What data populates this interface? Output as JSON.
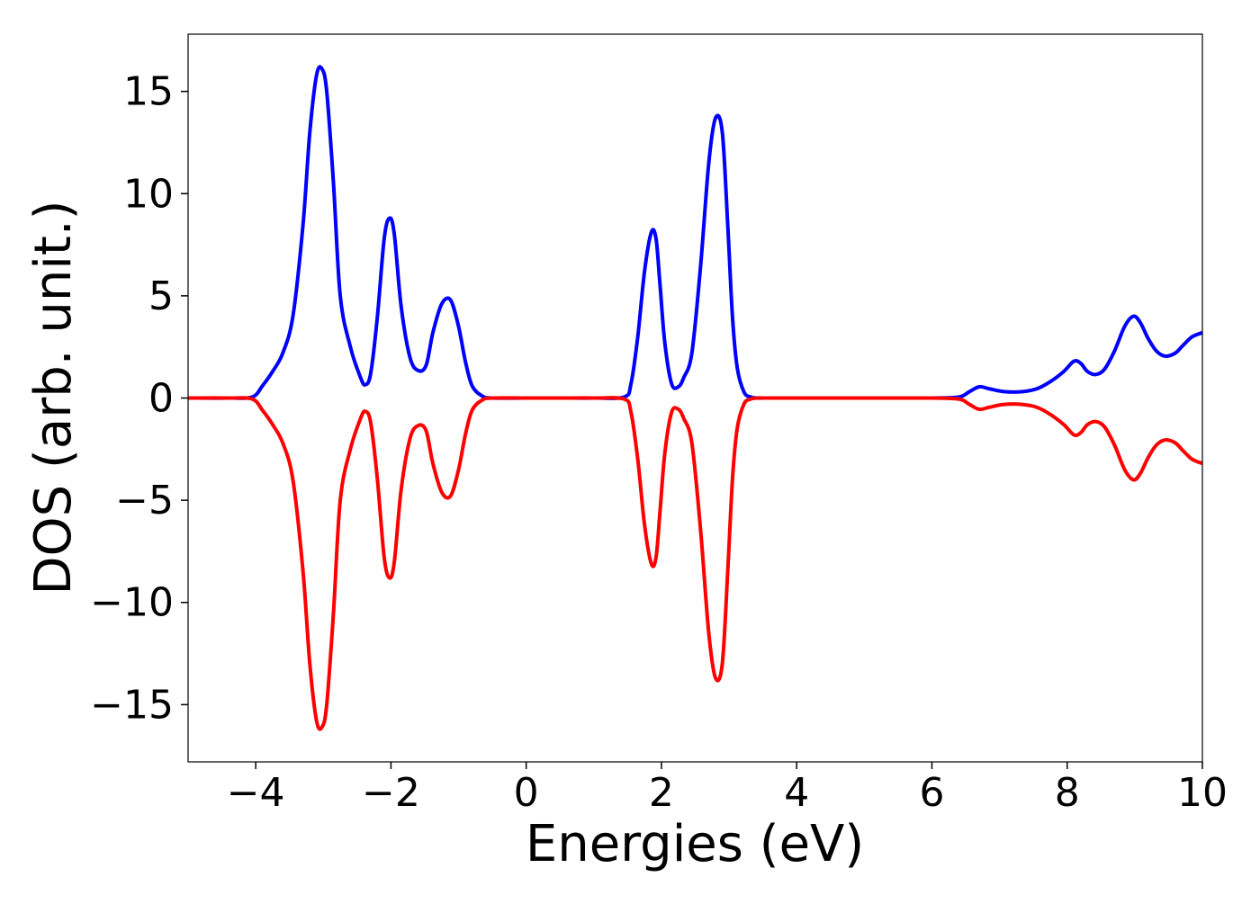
{
  "chart_data": {
    "type": "line",
    "title": "",
    "xlabel": "Energies (eV)",
    "ylabel": "DOS (arb. unit.)",
    "xlim": [
      -5,
      10
    ],
    "ylim": [
      -17.8,
      17.8
    ],
    "x_ticks": [
      -4,
      -2,
      0,
      2,
      4,
      6,
      8,
      10
    ],
    "x_tick_labels": [
      "−4",
      "−2",
      "0",
      "2",
      "4",
      "6",
      "8",
      "10"
    ],
    "y_ticks": [
      -15,
      -10,
      -5,
      0,
      5,
      10,
      15
    ],
    "y_tick_labels": [
      "−15",
      "−10",
      "−5",
      "0",
      "5",
      "10",
      "15"
    ],
    "grid": false,
    "legend": "none",
    "series": [
      {
        "color": "#0000ff",
        "x": [
          -5.0,
          -4.4,
          -4.05,
          -3.9,
          -3.75,
          -3.6,
          -3.45,
          -3.3,
          -3.2,
          -3.1,
          -3.02,
          -2.95,
          -2.85,
          -2.75,
          -2.6,
          -2.45,
          -2.38,
          -2.3,
          -2.2,
          -2.1,
          -2.02,
          -1.95,
          -1.85,
          -1.72,
          -1.6,
          -1.48,
          -1.38,
          -1.25,
          -1.12,
          -1.0,
          -0.9,
          -0.8,
          -0.65,
          -0.5,
          0.0,
          0.5,
          1.0,
          1.45,
          1.55,
          1.65,
          1.75,
          1.85,
          1.92,
          1.98,
          2.05,
          2.15,
          2.25,
          2.33,
          2.45,
          2.58,
          2.7,
          2.8,
          2.9,
          2.98,
          3.05,
          3.12,
          3.22,
          3.32,
          3.42,
          3.55,
          3.7,
          4.0,
          5.0,
          6.0,
          6.4,
          6.55,
          6.7,
          6.85,
          7.05,
          7.3,
          7.55,
          7.75,
          7.95,
          8.1,
          8.2,
          8.3,
          8.42,
          8.55,
          8.7,
          8.85,
          8.98,
          9.08,
          9.2,
          9.32,
          9.45,
          9.6,
          9.72,
          9.85,
          10.0
        ],
        "y": [
          0,
          0,
          0.05,
          0.6,
          1.3,
          2.2,
          4.0,
          8.5,
          13.0,
          15.8,
          16.1,
          15.0,
          10.5,
          5.0,
          2.5,
          1.0,
          0.65,
          1.2,
          4.0,
          7.8,
          8.8,
          8.0,
          4.5,
          2.0,
          1.35,
          1.6,
          3.2,
          4.6,
          4.8,
          3.5,
          1.8,
          0.6,
          0.1,
          0,
          0,
          0,
          0,
          0.05,
          0.7,
          3.0,
          6.2,
          8.1,
          7.8,
          5.5,
          2.7,
          0.7,
          0.55,
          1.0,
          2.2,
          6.5,
          11.5,
          13.7,
          13.0,
          8.5,
          4.0,
          1.5,
          0.3,
          0.05,
          0,
          0,
          0,
          0,
          0,
          0,
          0.05,
          0.3,
          0.55,
          0.45,
          0.32,
          0.3,
          0.45,
          0.8,
          1.3,
          1.8,
          1.7,
          1.3,
          1.15,
          1.4,
          2.3,
          3.5,
          4.0,
          3.7,
          2.9,
          2.3,
          2.05,
          2.2,
          2.6,
          3.0,
          3.2
        ]
      },
      {
        "color": "#ff0000",
        "x": [
          -5.0,
          -4.4,
          -4.05,
          -3.9,
          -3.75,
          -3.6,
          -3.45,
          -3.3,
          -3.2,
          -3.1,
          -3.02,
          -2.95,
          -2.85,
          -2.75,
          -2.6,
          -2.45,
          -2.38,
          -2.3,
          -2.2,
          -2.1,
          -2.02,
          -1.95,
          -1.85,
          -1.72,
          -1.6,
          -1.48,
          -1.38,
          -1.25,
          -1.12,
          -1.0,
          -0.9,
          -0.8,
          -0.65,
          -0.5,
          0.0,
          0.5,
          1.0,
          1.45,
          1.55,
          1.65,
          1.75,
          1.85,
          1.92,
          1.98,
          2.05,
          2.15,
          2.25,
          2.33,
          2.45,
          2.58,
          2.7,
          2.8,
          2.9,
          2.98,
          3.05,
          3.12,
          3.22,
          3.32,
          3.42,
          3.55,
          3.7,
          4.0,
          5.0,
          6.0,
          6.4,
          6.55,
          6.7,
          6.85,
          7.05,
          7.3,
          7.55,
          7.75,
          7.95,
          8.1,
          8.2,
          8.3,
          8.42,
          8.55,
          8.7,
          8.85,
          8.98,
          9.08,
          9.2,
          9.32,
          9.45,
          9.6,
          9.72,
          9.85,
          10.0
        ],
        "y": [
          0,
          0,
          -0.05,
          -0.6,
          -1.3,
          -2.2,
          -4.0,
          -8.5,
          -13.0,
          -15.8,
          -16.1,
          -15.0,
          -10.5,
          -5.0,
          -2.5,
          -1.0,
          -0.65,
          -1.2,
          -4.0,
          -7.8,
          -8.8,
          -8.0,
          -4.5,
          -2.0,
          -1.35,
          -1.6,
          -3.2,
          -4.6,
          -4.8,
          -3.5,
          -1.8,
          -0.6,
          -0.1,
          0,
          0,
          0,
          0,
          -0.05,
          -0.7,
          -3.0,
          -6.2,
          -8.1,
          -7.8,
          -5.5,
          -2.7,
          -0.7,
          -0.55,
          -1.0,
          -2.2,
          -6.5,
          -11.5,
          -13.7,
          -13.0,
          -8.5,
          -4.0,
          -1.5,
          -0.3,
          -0.05,
          0,
          0,
          0,
          0,
          0,
          0,
          -0.05,
          -0.3,
          -0.55,
          -0.45,
          -0.32,
          -0.3,
          -0.45,
          -0.8,
          -1.3,
          -1.8,
          -1.7,
          -1.3,
          -1.15,
          -1.4,
          -2.3,
          -3.5,
          -4.0,
          -3.7,
          -2.9,
          -2.3,
          -2.05,
          -2.2,
          -2.6,
          -3.0,
          -3.2
        ]
      }
    ]
  }
}
